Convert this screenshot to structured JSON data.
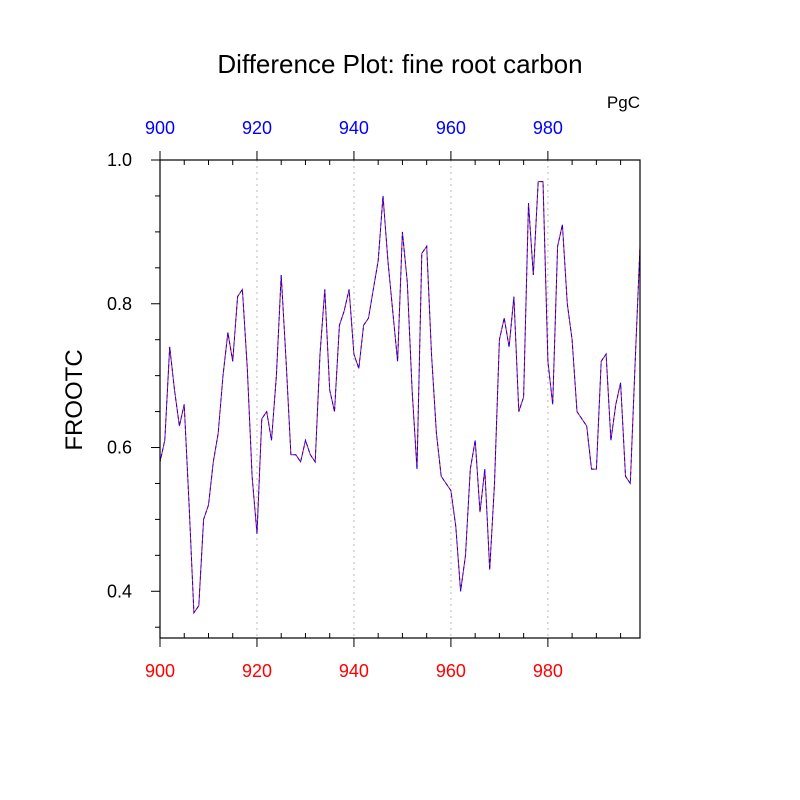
{
  "chart_data": {
    "type": "line",
    "title": "Difference Plot: fine root carbon",
    "units": "PgC",
    "ylabel": "FROOTC",
    "xlabel": "",
    "xlim": [
      900,
      999
    ],
    "ylim": [
      0.335,
      1.0
    ],
    "grid": "x-only-dotted",
    "bottom_axis_color": "#ff0000",
    "top_axis_color": "#0000ff",
    "frame_color": "#000000",
    "xticks": [
      900,
      920,
      940,
      960,
      980
    ],
    "xticks_top": [
      900,
      920,
      940,
      960,
      980
    ],
    "yticks": [
      0.4,
      0.6,
      0.8,
      1.0
    ],
    "yticks_labels": [
      "0.4",
      "0.6",
      "0.8",
      "1.0"
    ],
    "series": [
      {
        "color": "#ff0000",
        "dash": "dashed",
        "x": [
          900,
          901,
          902,
          903,
          904,
          905,
          906,
          907,
          908,
          909,
          910,
          911,
          912,
          913,
          914,
          915,
          916,
          917,
          918,
          919,
          920,
          921,
          922,
          923,
          924,
          925,
          926,
          927,
          928,
          929,
          930,
          931,
          932,
          933,
          934,
          935,
          936,
          937,
          938,
          939,
          940,
          941,
          942,
          943,
          944,
          945,
          946,
          947,
          948,
          949,
          950,
          951,
          952,
          953,
          954,
          955,
          956,
          957,
          958,
          959,
          960,
          961,
          962,
          963,
          964,
          965,
          966,
          967,
          968,
          969,
          970,
          971,
          972,
          973,
          974,
          975,
          976,
          977,
          978,
          979,
          980,
          981,
          982,
          983,
          984,
          985,
          986,
          987,
          988,
          989,
          990,
          991,
          992,
          993,
          994,
          995,
          996,
          997,
          998,
          999
        ],
        "y": [
          0.58,
          0.61,
          0.74,
          0.68,
          0.63,
          0.66,
          0.52,
          0.37,
          0.38,
          0.5,
          0.52,
          0.58,
          0.62,
          0.7,
          0.76,
          0.72,
          0.81,
          0.82,
          0.71,
          0.56,
          0.48,
          0.64,
          0.65,
          0.61,
          0.7,
          0.84,
          0.72,
          0.59,
          0.59,
          0.58,
          0.61,
          0.59,
          0.58,
          0.73,
          0.82,
          0.68,
          0.65,
          0.77,
          0.79,
          0.82,
          0.73,
          0.71,
          0.77,
          0.78,
          0.82,
          0.86,
          0.95,
          0.86,
          0.79,
          0.72,
          0.9,
          0.83,
          0.68,
          0.57,
          0.87,
          0.88,
          0.73,
          0.62,
          0.56,
          0.55,
          0.54,
          0.49,
          0.4,
          0.45,
          0.57,
          0.61,
          0.51,
          0.57,
          0.43,
          0.55,
          0.75,
          0.78,
          0.74,
          0.81,
          0.65,
          0.67,
          0.94,
          0.84,
          0.97,
          0.97,
          0.72,
          0.66,
          0.88,
          0.91,
          0.8,
          0.75,
          0.65,
          0.64,
          0.63,
          0.57,
          0.57,
          0.72,
          0.73,
          0.61,
          0.66,
          0.69,
          0.56,
          0.55,
          0.72,
          0.88
        ]
      },
      {
        "color": "#0000ff",
        "dash": "dashed",
        "x": [
          900,
          901,
          902,
          903,
          904,
          905,
          906,
          907,
          908,
          909,
          910,
          911,
          912,
          913,
          914,
          915,
          916,
          917,
          918,
          919,
          920,
          921,
          922,
          923,
          924,
          925,
          926,
          927,
          928,
          929,
          930,
          931,
          932,
          933,
          934,
          935,
          936,
          937,
          938,
          939,
          940,
          941,
          942,
          943,
          944,
          945,
          946,
          947,
          948,
          949,
          950,
          951,
          952,
          953,
          954,
          955,
          956,
          957,
          958,
          959,
          960,
          961,
          962,
          963,
          964,
          965,
          966,
          967,
          968,
          969,
          970,
          971,
          972,
          973,
          974,
          975,
          976,
          977,
          978,
          979,
          980,
          981,
          982,
          983,
          984,
          985,
          986,
          987,
          988,
          989,
          990,
          991,
          992,
          993,
          994,
          995,
          996,
          997,
          998,
          999
        ],
        "y": [
          0.58,
          0.61,
          0.74,
          0.68,
          0.63,
          0.66,
          0.52,
          0.37,
          0.38,
          0.5,
          0.52,
          0.58,
          0.62,
          0.7,
          0.76,
          0.72,
          0.81,
          0.82,
          0.71,
          0.56,
          0.48,
          0.64,
          0.65,
          0.61,
          0.7,
          0.84,
          0.72,
          0.59,
          0.59,
          0.58,
          0.61,
          0.59,
          0.58,
          0.73,
          0.82,
          0.68,
          0.65,
          0.77,
          0.79,
          0.82,
          0.73,
          0.71,
          0.77,
          0.78,
          0.82,
          0.86,
          0.95,
          0.86,
          0.79,
          0.72,
          0.9,
          0.83,
          0.68,
          0.57,
          0.87,
          0.88,
          0.73,
          0.62,
          0.56,
          0.55,
          0.54,
          0.49,
          0.4,
          0.45,
          0.57,
          0.61,
          0.51,
          0.57,
          0.43,
          0.55,
          0.75,
          0.78,
          0.74,
          0.81,
          0.65,
          0.67,
          0.94,
          0.84,
          0.97,
          0.97,
          0.72,
          0.66,
          0.88,
          0.91,
          0.8,
          0.75,
          0.65,
          0.64,
          0.63,
          0.57,
          0.57,
          0.72,
          0.73,
          0.61,
          0.66,
          0.69,
          0.56,
          0.55,
          0.72,
          0.88
        ]
      }
    ]
  }
}
